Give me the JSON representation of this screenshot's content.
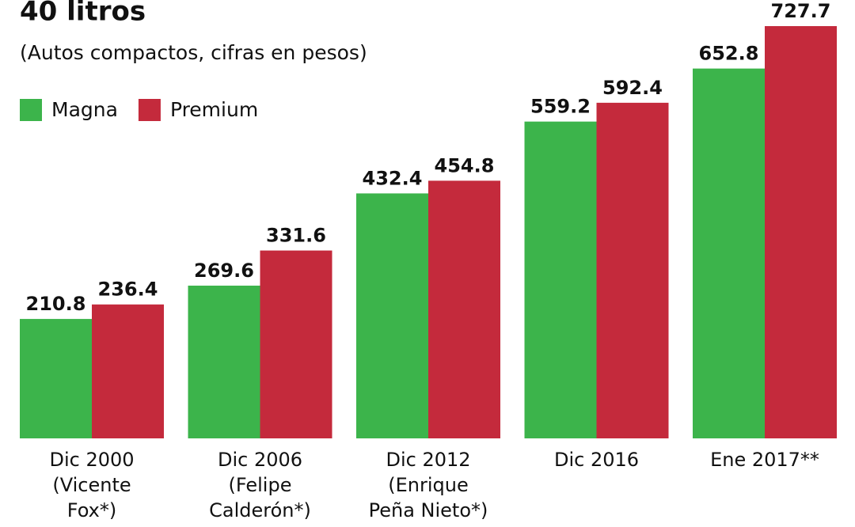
{
  "chart_data": {
    "type": "bar",
    "title": "40 litros",
    "subtitle": "(Autos compactos, cifras en pesos)",
    "categories": [
      [
        "Dic 2000",
        "(Vicente",
        "Fox*)"
      ],
      [
        "Dic 2006",
        "(Felipe",
        "Calderón*)"
      ],
      [
        "Dic 2012",
        "(Enrique",
        "Peña Nieto*)"
      ],
      [
        "Dic 2016"
      ],
      [
        "Ene 2017**"
      ]
    ],
    "series": [
      {
        "name": "Magna",
        "color": "#3cb44b",
        "values": [
          210.8,
          269.6,
          432.4,
          559.2,
          652.8
        ]
      },
      {
        "name": "Premium",
        "color": "#c42a3c",
        "values": [
          236.4,
          331.6,
          454.8,
          592.4,
          727.7
        ]
      }
    ],
    "legend": "top-left"
  }
}
